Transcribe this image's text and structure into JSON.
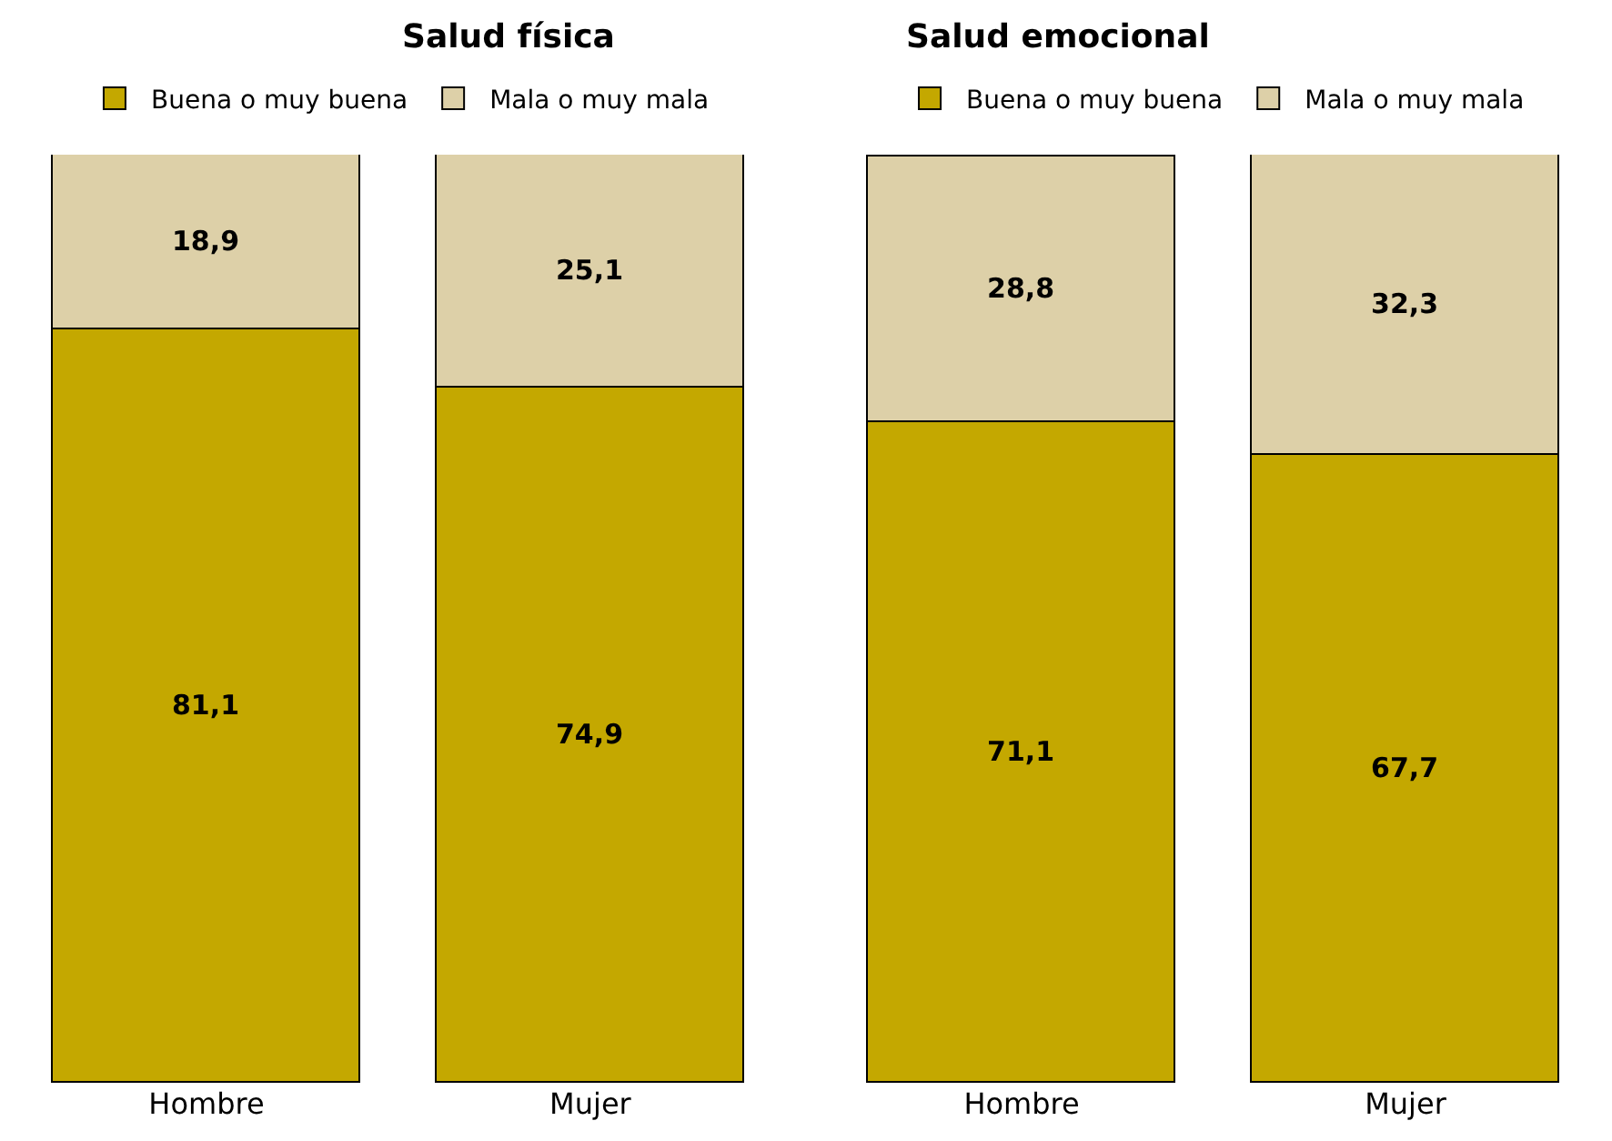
{
  "chart_data": [
    {
      "type": "bar",
      "title": "Salud física",
      "categories": [
        "Hombre",
        "Mujer"
      ],
      "stacked": true,
      "legend": "top",
      "series": [
        {
          "name": "Buena o muy buena",
          "color": "#c4a800",
          "values": [
            81.1,
            74.9
          ],
          "value_labels": [
            "81,1",
            "74,9"
          ]
        },
        {
          "name": "Mala o muy mala",
          "color": "#ddd0a8",
          "values": [
            18.9,
            25.1
          ],
          "value_labels": [
            "18,9",
            "25,1"
          ]
        }
      ]
    },
    {
      "type": "bar",
      "title": "Salud emocional",
      "categories": [
        "Hombre",
        "Mujer"
      ],
      "stacked": true,
      "legend": "top",
      "series": [
        {
          "name": "Buena o muy buena",
          "color": "#c4a800",
          "values": [
            71.1,
            67.7
          ],
          "value_labels": [
            "71,1",
            "67,7"
          ]
        },
        {
          "name": "Mala o muy mala",
          "color": "#ddd0a8",
          "values": [
            28.8,
            32.3
          ],
          "value_labels": [
            "28,8",
            "32,3"
          ]
        }
      ]
    }
  ]
}
